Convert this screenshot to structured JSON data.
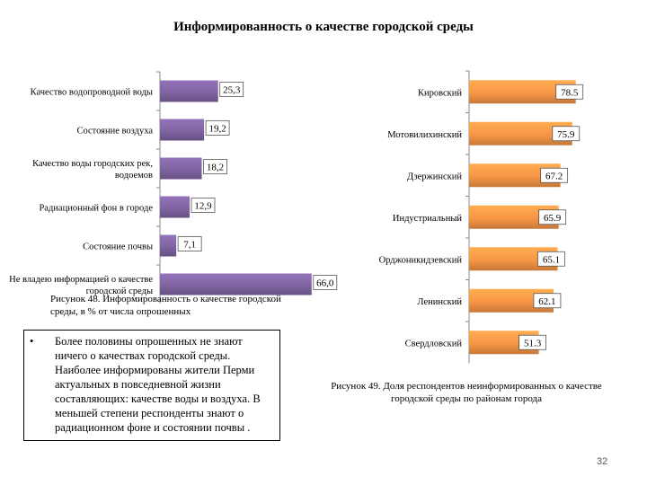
{
  "page": {
    "title": "Информированность о качестве городской среды",
    "page_number": "32"
  },
  "chart_data": [
    {
      "type": "bar",
      "orientation": "horizontal",
      "title": "",
      "categories": [
        "Качество водопроводной воды",
        "Состояние воздуха",
        "Качество воды городских рек, водоемов",
        "Радиационный фон в городе",
        "Состояние почвы",
        "Не владею информацией о качестве городской среды"
      ],
      "category_lines": [
        [
          "Качество водопроводной воды"
        ],
        [
          "Состояние воздуха"
        ],
        [
          "Качество воды городских рек,",
          "водоемов"
        ],
        [
          "Радиационный фон в городе"
        ],
        [
          "Состояние почвы"
        ],
        [
          "Не владею информацией о качестве",
          "городской среды"
        ]
      ],
      "values": [
        25.3,
        19.2,
        18.2,
        12.9,
        7.1,
        66.0
      ],
      "value_labels": [
        "25,3",
        "19,2",
        "18,2",
        "12,9",
        "7,1",
        "66,0"
      ],
      "xlim": [
        0,
        70
      ],
      "bar_color": "#8064A2",
      "caption": "Рисунок 48. Информированность о качестве городской среды, в % от числа опрошенных"
    },
    {
      "type": "bar",
      "orientation": "horizontal",
      "title": "",
      "categories": [
        "Кировский",
        "Мотовилихинский",
        "Дзержинский",
        "Индустриальный",
        "Орджоникидзевский",
        "Ленинский",
        "Свердловский"
      ],
      "values": [
        78.5,
        75.9,
        67.2,
        65.9,
        65.1,
        62.1,
        51.3
      ],
      "value_labels": [
        "78.5",
        "75.9",
        "67.2",
        "65.9",
        "65.1",
        "62.1",
        "51.3"
      ],
      "xlim": [
        0,
        80
      ],
      "bar_color": "#F79646",
      "caption": "Рисунок 49. Доля респондентов неинформированных о качестве городской среды по районам города"
    }
  ],
  "bullet": {
    "marker": "•",
    "text": "Более половины опрошенных не знают ничего о качествах городской среды. Наиболее информированы жители Перми актуальных в повседневной жизни составляющих: качестве воды и воздуха. В меньшей степени респонденты знают о радиационном фоне и состоянии почвы ."
  }
}
